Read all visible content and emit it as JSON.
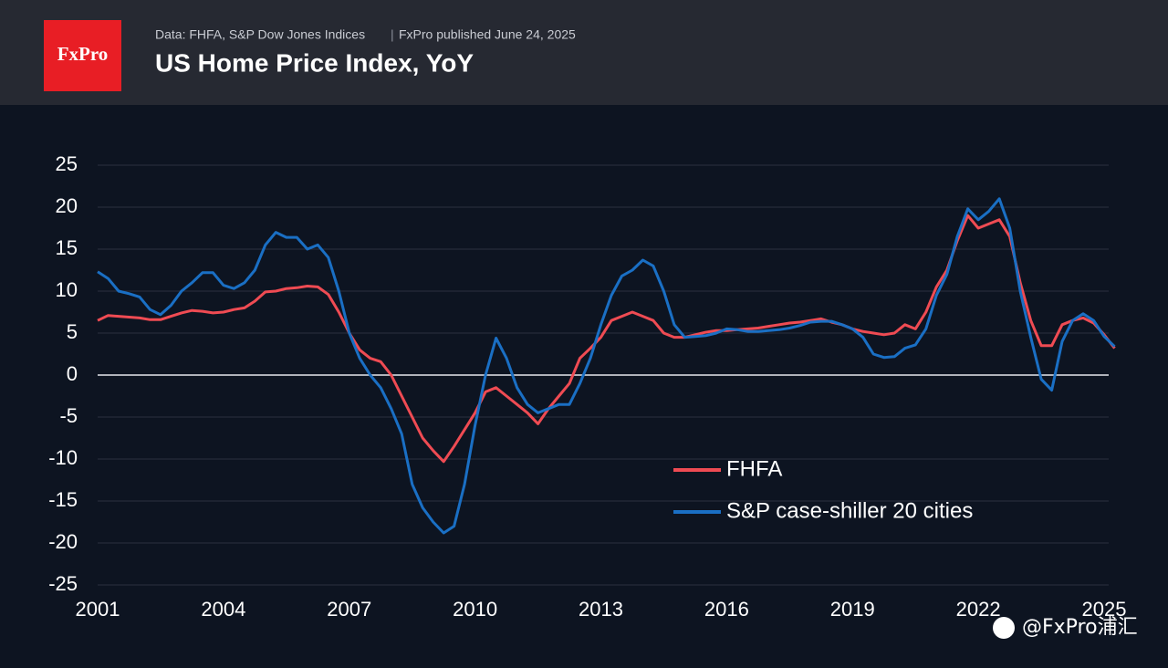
{
  "header": {
    "logo": "FxPro",
    "source": "Data: FHFA, S&P Dow Jones Indices",
    "published": "FxPro published June 24, 2025"
  },
  "watermark": "@FxPro浦汇",
  "chart_data": {
    "type": "line",
    "title": "US Home Price Index, YoY",
    "x": [
      2001,
      2001.25,
      2001.5,
      2001.75,
      2002,
      2002.25,
      2002.5,
      2002.75,
      2003,
      2003.25,
      2003.5,
      2003.75,
      2004,
      2004.25,
      2004.5,
      2004.75,
      2005,
      2005.25,
      2005.5,
      2005.75,
      2006,
      2006.25,
      2006.5,
      2006.75,
      2007,
      2007.25,
      2007.5,
      2007.75,
      2008,
      2008.25,
      2008.5,
      2008.75,
      2009,
      2009.25,
      2009.5,
      2009.75,
      2010,
      2010.25,
      2010.5,
      2010.75,
      2011,
      2011.25,
      2011.5,
      2011.75,
      2012,
      2012.25,
      2012.5,
      2012.75,
      2013,
      2013.25,
      2013.5,
      2013.75,
      2014,
      2014.25,
      2014.5,
      2014.75,
      2015,
      2015.25,
      2015.5,
      2015.75,
      2016,
      2016.25,
      2016.5,
      2016.75,
      2017,
      2017.25,
      2017.5,
      2017.75,
      2018,
      2018.25,
      2018.5,
      2018.75,
      2019,
      2019.25,
      2019.5,
      2019.75,
      2020,
      2020.25,
      2020.5,
      2020.75,
      2021,
      2021.25,
      2021.5,
      2021.75,
      2022,
      2022.25,
      2022.5,
      2022.75,
      2023,
      2023.25,
      2023.5,
      2023.75,
      2024,
      2024.25,
      2024.5,
      2024.75,
      2025,
      2025.25
    ],
    "series": [
      {
        "name": "FHFA",
        "color": "#ef4b53",
        "values": [
          6.5,
          7.1,
          7,
          6.9,
          6.8,
          6.6,
          6.6,
          7,
          7.4,
          7.7,
          7.6,
          7.4,
          7.5,
          7.8,
          8,
          8.8,
          9.9,
          10,
          10.3,
          10.4,
          10.6,
          10.5,
          9.6,
          7.5,
          5,
          3,
          2,
          1.6,
          0,
          -2.5,
          -5,
          -7.5,
          -9,
          -10.3,
          -8.5,
          -6.5,
          -4.5,
          -2,
          -1.5,
          -2.5,
          -3.5,
          -4.5,
          -5.8,
          -4,
          -2.5,
          -1,
          2,
          3.2,
          4.5,
          6.5,
          7,
          7.5,
          7,
          6.5,
          5,
          4.5,
          4.5,
          4.8,
          5.1,
          5.3,
          5.3,
          5.4,
          5.5,
          5.6,
          5.8,
          6,
          6.2,
          6.3,
          6.5,
          6.7,
          6.3,
          6,
          5.5,
          5.2,
          5,
          4.8,
          5,
          6,
          5.5,
          7.5,
          10.5,
          12.5,
          16,
          19,
          17.5,
          18,
          18.5,
          16.5,
          11,
          6.5,
          3.5,
          3.5,
          6,
          6.5,
          6.8,
          6.2,
          4.8,
          3.2
        ]
      },
      {
        "name": "S&P case-shiller 20 cities",
        "color": "#1a6fc4",
        "values": [
          12.3,
          11.5,
          10,
          9.7,
          9.3,
          7.8,
          7.2,
          8.3,
          10,
          11,
          12.2,
          12.2,
          10.7,
          10.3,
          11,
          12.5,
          15.5,
          17,
          16.4,
          16.4,
          15,
          15.5,
          14,
          10,
          5,
          2,
          0,
          -1.5,
          -4,
          -7,
          -13,
          -15.8,
          -17.5,
          -18.8,
          -18,
          -13,
          -6,
          0,
          4.4,
          2,
          -1.5,
          -3.5,
          -4.5,
          -4,
          -3.5,
          -3.5,
          -1,
          2,
          6,
          9.5,
          11.8,
          12.5,
          13.7,
          13,
          10,
          6,
          4.5,
          4.6,
          4.7,
          5,
          5.5,
          5.4,
          5.2,
          5.2,
          5.3,
          5.4,
          5.6,
          5.9,
          6.3,
          6.4,
          6.4,
          6,
          5.5,
          4.5,
          2.5,
          2.1,
          2.2,
          3.2,
          3.6,
          5.5,
          9.5,
          12,
          16.5,
          19.8,
          18.5,
          19.5,
          21,
          17.5,
          10,
          4.5,
          -0.5,
          -1.8,
          4,
          6.5,
          7.3,
          6.5,
          4.6,
          3.4
        ]
      }
    ],
    "xlim": [
      2001,
      2025
    ],
    "xticks": [
      2001,
      2004,
      2007,
      2010,
      2013,
      2016,
      2019,
      2022,
      2025
    ],
    "ylim": [
      -25,
      25
    ],
    "yticks": [
      -25,
      -20,
      -15,
      -10,
      -5,
      0,
      5,
      10,
      15,
      20,
      25
    ],
    "grid": true
  }
}
